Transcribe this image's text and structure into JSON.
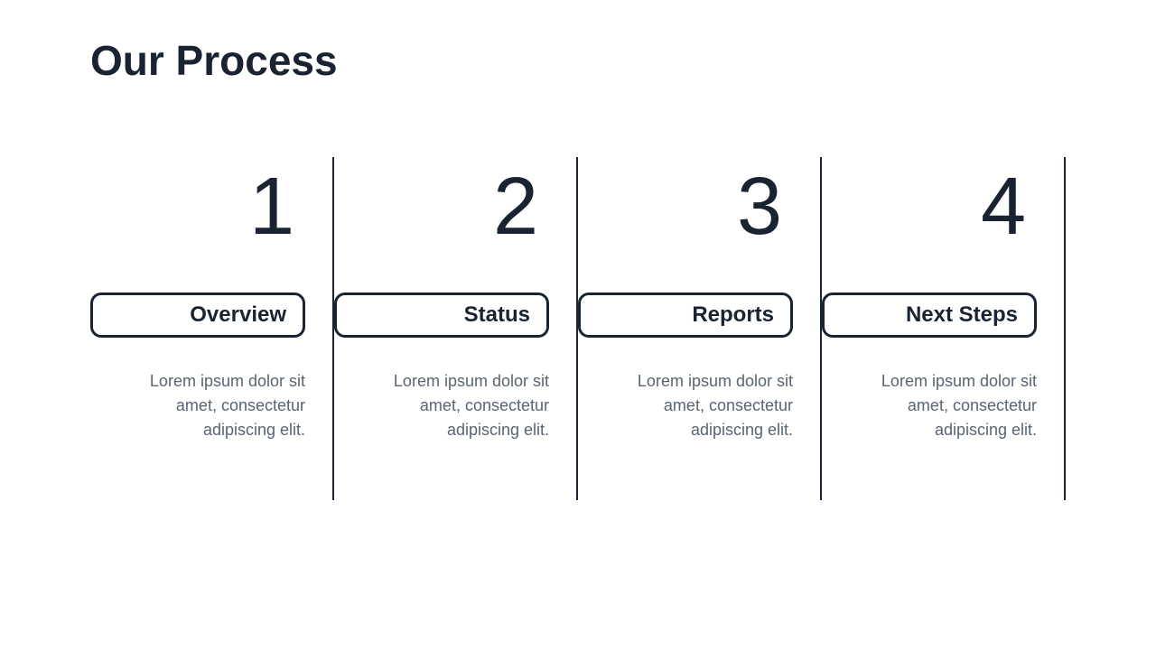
{
  "type": "infographic",
  "layout": "horizontal-steps",
  "background_color": "#ffffff",
  "title": {
    "text": "Our Process",
    "font_size": 46,
    "font_weight": 700,
    "color": "#1a2332"
  },
  "step_styling": {
    "divider_color": "#1a2332",
    "divider_width": 2,
    "number_font_size": 90,
    "number_color": "#1a2332",
    "label_border_color": "#1a2332",
    "label_border_width": 3,
    "label_border_radius": 12,
    "label_font_size": 24,
    "label_font_weight": 600,
    "label_color": "#1a2332",
    "description_font_size": 18,
    "description_color": "#5a6472",
    "text_align": "right"
  },
  "steps": [
    {
      "number": "1",
      "label": "Overview",
      "description": "Lorem ipsum dolor sit amet, consectetur adipiscing elit."
    },
    {
      "number": "2",
      "label": "Status",
      "description": "Lorem ipsum dolor sit amet, consectetur adipiscing elit."
    },
    {
      "number": "3",
      "label": "Reports",
      "description": "Lorem ipsum dolor sit amet, consectetur adipiscing elit."
    },
    {
      "number": "4",
      "label": "Next Steps",
      "description": "Lorem ipsum dolor sit amet, consectetur adipiscing elit."
    }
  ]
}
